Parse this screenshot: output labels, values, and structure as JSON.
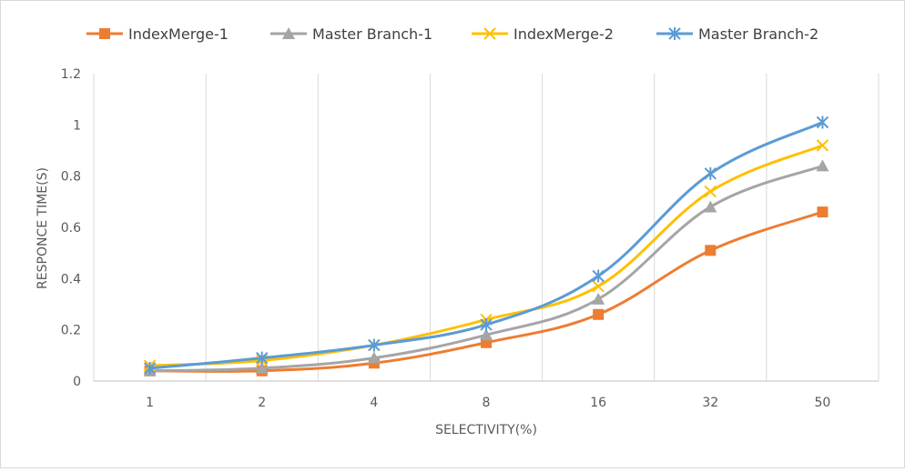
{
  "chart_data": {
    "type": "line",
    "title": "",
    "xlabel": "SELECTIVITY(%)",
    "ylabel": "RESPONCE TIME(S)",
    "categories": [
      "1",
      "2",
      "4",
      "8",
      "16",
      "32",
      "50"
    ],
    "ylim": [
      0,
      1.2
    ],
    "yticks": [
      "0",
      "0.2",
      "0.4",
      "0.6",
      "0.8",
      "1",
      "1.2"
    ],
    "grid": "vertical",
    "legend_position": "top",
    "series": [
      {
        "name": "IndexMerge-1",
        "color": "#ed7d31",
        "marker": "square",
        "values": [
          0.04,
          0.04,
          0.07,
          0.15,
          0.26,
          0.51,
          0.66
        ]
      },
      {
        "name": "Master Branch-1",
        "color": "#a5a5a5",
        "marker": "triangle",
        "values": [
          0.04,
          0.05,
          0.09,
          0.18,
          0.32,
          0.68,
          0.84
        ]
      },
      {
        "name": "IndexMerge-2",
        "color": "#ffc000",
        "marker": "x",
        "values": [
          0.06,
          0.08,
          0.14,
          0.24,
          0.37,
          0.74,
          0.92
        ]
      },
      {
        "name": "Master Branch-2",
        "color": "#5b9bd5",
        "marker": "asterisk",
        "values": [
          0.05,
          0.09,
          0.14,
          0.22,
          0.41,
          0.81,
          1.01
        ]
      }
    ]
  }
}
